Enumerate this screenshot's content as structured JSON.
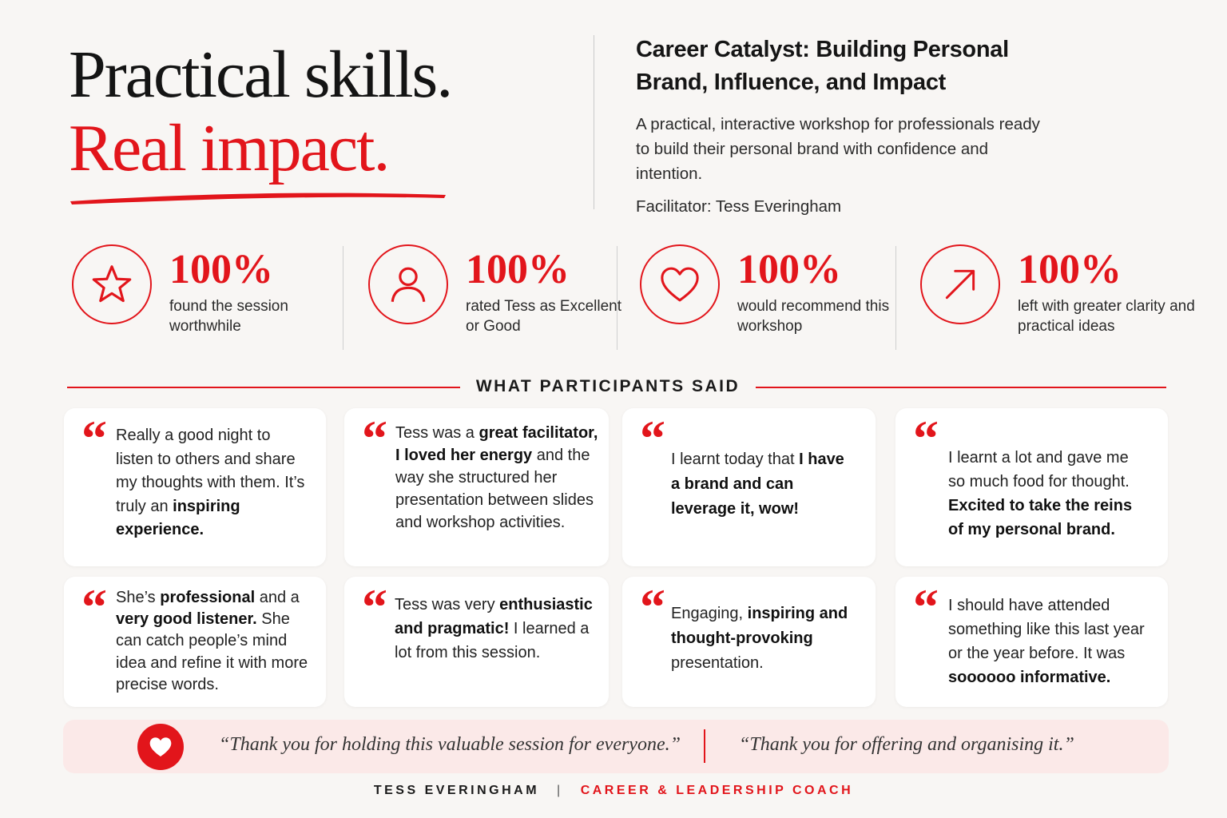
{
  "hero": {
    "line1": "Practical skills.",
    "line2": "Real impact."
  },
  "intro": {
    "title": "Career Catalyst: Building Personal Brand, Influence, and Impact",
    "description": "A practical, interactive workshop for professionals ready to build their personal brand with confidence and intention.",
    "facilitator": "Facilitator: Tess Everingham"
  },
  "stats": [
    {
      "icon": "star-icon",
      "value": "100%",
      "label": "found the session worthwhile"
    },
    {
      "icon": "person-icon",
      "value": "100%",
      "label": "rated Tess as Excellent or Good"
    },
    {
      "icon": "heart-icon",
      "value": "100%",
      "label": "would recommend this workshop"
    },
    {
      "icon": "arrow-up-right-icon",
      "value": "100%",
      "label": "left with greater clarity and practical ideas"
    }
  ],
  "section_title": "WHAT PARTICIPANTS SAID",
  "testimonials": [
    {
      "parts": [
        {
          "t": "Really a good night to listen to others and share my thoughts with them. It’s truly an "
        },
        {
          "t": "inspiring experience.",
          "b": true
        }
      ]
    },
    {
      "parts": [
        {
          "t": "Tess was a "
        },
        {
          "t": "great facilitator, I loved her energy",
          "b": true
        },
        {
          "t": " and the way she structured her presentation between slides and workshop activities."
        }
      ]
    },
    {
      "parts": [
        {
          "t": "I learnt today that "
        },
        {
          "t": "I have a brand and can leverage it, wow!",
          "b": true
        }
      ]
    },
    {
      "parts": [
        {
          "t": "I learnt a lot and gave me so much food for thought. "
        },
        {
          "t": "Excited to take the reins of my personal brand.",
          "b": true
        }
      ]
    },
    {
      "parts": [
        {
          "t": "She’s "
        },
        {
          "t": "professional",
          "b": true
        },
        {
          "t": " and a "
        },
        {
          "t": "very good listener.",
          "b": true
        },
        {
          "t": " She can catch people’s mind idea and refine it with more precise words."
        }
      ]
    },
    {
      "parts": [
        {
          "t": "Tess was very "
        },
        {
          "t": "enthusiastic and pragmatic!",
          "b": true
        },
        {
          "t": " I learned a lot from this session."
        }
      ]
    },
    {
      "parts": [
        {
          "t": "Engaging, "
        },
        {
          "t": "inspiring and thought-provoking",
          "b": true
        },
        {
          "t": " presentation."
        }
      ]
    },
    {
      "parts": [
        {
          "t": "I should have attended something like this last year or the year before. It was "
        },
        {
          "t": "soooooo informative.",
          "b": true
        }
      ]
    }
  ],
  "band": {
    "quote1": "“Thank you for holding this valuable session for everyone.”",
    "quote2": "“Thank you for offering and organising it.”"
  },
  "footer": {
    "name": "TESS EVERINGHAM",
    "separator": "|",
    "role": "CAREER & LEADERSHIP COACH"
  },
  "colors": {
    "accent": "#e2151b",
    "background": "#f8f6f4",
    "card": "#ffffff",
    "band": "#fbe9e8"
  }
}
